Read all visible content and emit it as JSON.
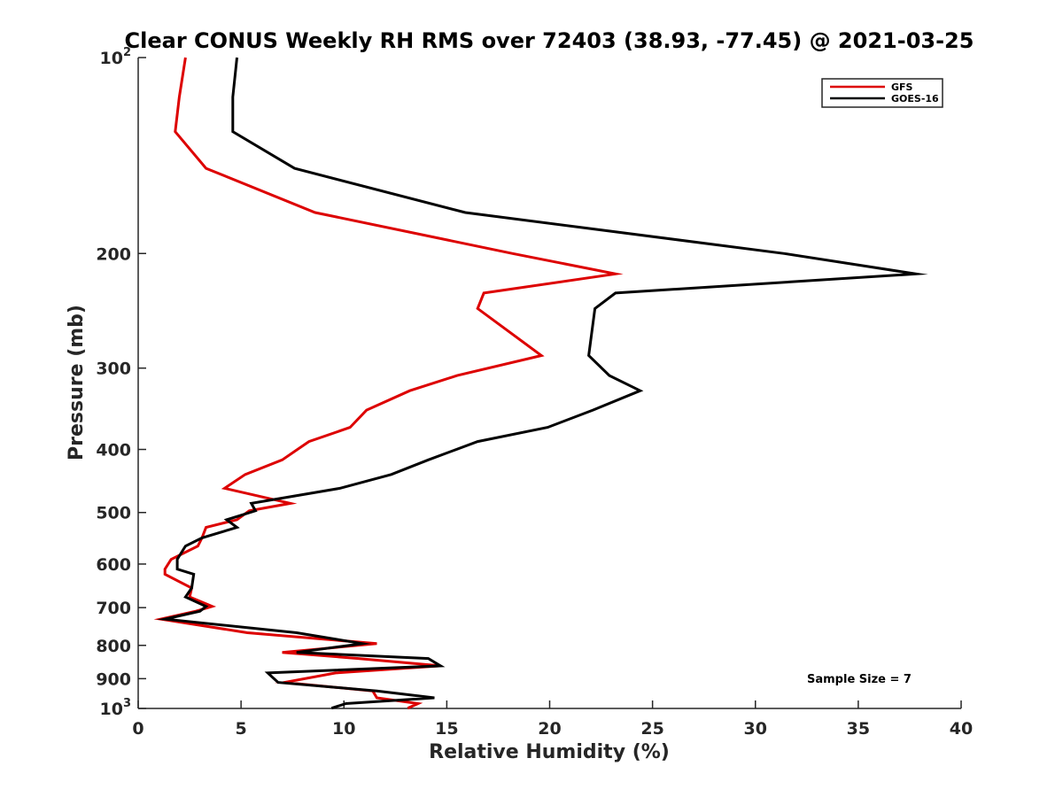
{
  "chart_data": {
    "type": "line",
    "title": "Clear CONUS Weekly RH RMS over 72403 (38.93, -77.45) @ 2021-03-25",
    "xlabel": "Relative Humidity (%)",
    "ylabel": "Pressure (mb)",
    "xlim": [
      0,
      40
    ],
    "ylim": [
      100,
      1000
    ],
    "yscale": "log",
    "yreversed": true,
    "grid": false,
    "legend_position": "top-right",
    "x_ticks": [
      0,
      5,
      10,
      15,
      20,
      25,
      30,
      35,
      40
    ],
    "x_tick_labels": [
      "0",
      "5",
      "10",
      "15",
      "20",
      "25",
      "30",
      "35",
      "40"
    ],
    "y_ticks": [
      100,
      200,
      300,
      400,
      500,
      600,
      700,
      800,
      900,
      1000
    ],
    "y_tick_labels": [
      {
        "base": "10",
        "sup": "2"
      },
      {
        "base": "200",
        "sup": ""
      },
      {
        "base": "300",
        "sup": ""
      },
      {
        "base": "400",
        "sup": ""
      },
      {
        "base": "500",
        "sup": ""
      },
      {
        "base": "600",
        "sup": ""
      },
      {
        "base": "700",
        "sup": ""
      },
      {
        "base": "800",
        "sup": ""
      },
      {
        "base": "900",
        "sup": ""
      },
      {
        "base": "10",
        "sup": "3"
      }
    ],
    "annotation": "Sample Size = 7",
    "series": [
      {
        "name": "GFS",
        "color": "#dd0000",
        "points": [
          [
            2.3,
            100
          ],
          [
            2.0,
            115
          ],
          [
            1.8,
            130
          ],
          [
            3.3,
            148
          ],
          [
            8.6,
            173
          ],
          [
            18.2,
            200
          ],
          [
            23.2,
            215
          ],
          [
            16.8,
            230
          ],
          [
            16.5,
            243
          ],
          [
            19.6,
            287
          ],
          [
            15.5,
            308
          ],
          [
            13.2,
            325
          ],
          [
            11.1,
            348
          ],
          [
            10.3,
            370
          ],
          [
            8.3,
            389
          ],
          [
            7.0,
            415
          ],
          [
            5.2,
            437
          ],
          [
            4.2,
            459
          ],
          [
            7.4,
            484
          ],
          [
            5.4,
            497
          ],
          [
            4.8,
            513
          ],
          [
            3.3,
            527
          ],
          [
            3.1,
            547
          ],
          [
            2.9,
            563
          ],
          [
            1.6,
            590
          ],
          [
            1.3,
            611
          ],
          [
            1.3,
            622
          ],
          [
            2.6,
            653
          ],
          [
            2.5,
            674
          ],
          [
            3.6,
            697
          ],
          [
            2.8,
            709
          ],
          [
            1.1,
            729
          ],
          [
            5.3,
            765
          ],
          [
            11.6,
            795
          ],
          [
            7.0,
            820
          ],
          [
            10.7,
            838
          ],
          [
            14.7,
            860
          ],
          [
            9.6,
            882
          ],
          [
            7.1,
            912
          ],
          [
            11.4,
            940
          ],
          [
            11.6,
            963
          ],
          [
            13.6,
            983
          ],
          [
            13.1,
            999
          ]
        ]
      },
      {
        "name": "GOES-16",
        "color": "#000000",
        "points": [
          [
            4.8,
            100
          ],
          [
            4.6,
            115
          ],
          [
            4.6,
            130
          ],
          [
            7.6,
            148
          ],
          [
            15.9,
            173
          ],
          [
            31.4,
            200
          ],
          [
            37.8,
            215
          ],
          [
            23.2,
            230
          ],
          [
            22.2,
            243
          ],
          [
            21.9,
            287
          ],
          [
            22.9,
            308
          ],
          [
            24.4,
            325
          ],
          [
            22.1,
            348
          ],
          [
            19.9,
            370
          ],
          [
            16.5,
            389
          ],
          [
            14.1,
            415
          ],
          [
            12.3,
            437
          ],
          [
            9.8,
            459
          ],
          [
            5.5,
            484
          ],
          [
            5.7,
            497
          ],
          [
            4.3,
            513
          ],
          [
            4.8,
            527
          ],
          [
            3.1,
            547
          ],
          [
            2.3,
            563
          ],
          [
            1.9,
            590
          ],
          [
            1.9,
            611
          ],
          [
            2.7,
            622
          ],
          [
            2.6,
            653
          ],
          [
            2.3,
            674
          ],
          [
            3.3,
            697
          ],
          [
            3.0,
            709
          ],
          [
            1.3,
            729
          ],
          [
            7.7,
            765
          ],
          [
            10.9,
            795
          ],
          [
            7.7,
            820
          ],
          [
            14.1,
            838
          ],
          [
            14.7,
            860
          ],
          [
            6.3,
            882
          ],
          [
            6.8,
            912
          ],
          [
            11.6,
            940
          ],
          [
            14.4,
            963
          ],
          [
            10.1,
            983
          ],
          [
            9.4,
            999
          ]
        ]
      }
    ]
  }
}
